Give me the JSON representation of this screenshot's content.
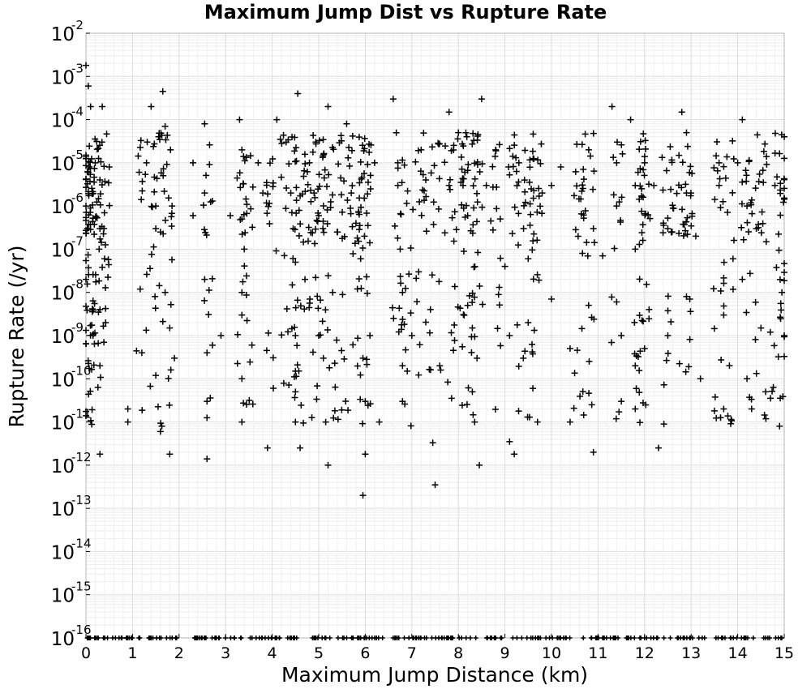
{
  "chart_data": {
    "type": "scatter",
    "title": "Maximum Jump Dist vs Rupture Rate",
    "xlabel": "Maximum Jump Distance (km)",
    "ylabel": "Rupture Rate (/yr)",
    "xlim": [
      0,
      15
    ],
    "ylim": [
      1e-16,
      0.01
    ],
    "y_scale": "log",
    "grid": true,
    "marker": "plus",
    "marker_color": "#000000",
    "xticks": [
      "0",
      "1",
      "2",
      "3",
      "4",
      "5",
      "6",
      "7",
      "8",
      "9",
      "10",
      "11",
      "12",
      "13",
      "14",
      "15"
    ],
    "yticks": [
      {
        "base": "10",
        "exp": "-2"
      },
      {
        "base": "10",
        "exp": "-3"
      },
      {
        "base": "10",
        "exp": "-4"
      },
      {
        "base": "10",
        "exp": "-5"
      },
      {
        "base": "10",
        "exp": "-6"
      },
      {
        "base": "10",
        "exp": "-7"
      },
      {
        "base": "10",
        "exp": "-8"
      },
      {
        "base": "10",
        "exp": "-9"
      },
      {
        "base": "10",
        "exp": "-10"
      },
      {
        "base": "10",
        "exp": "-11"
      },
      {
        "base": "10",
        "exp": "-12"
      },
      {
        "base": "10",
        "exp": "-13"
      },
      {
        "base": "10",
        "exp": "-14"
      },
      {
        "base": "10",
        "exp": "-15"
      },
      {
        "base": "10",
        "exp": "-16"
      }
    ],
    "points": [
      [
        0.0,
        0.0018
      ],
      [
        0.05,
        0.0006
      ],
      [
        0.1,
        0.0002
      ],
      [
        0.2,
        1e-05
      ],
      [
        0.3,
        4e-06
      ],
      [
        0.35,
        0.0002
      ],
      [
        0.3,
        3e-07
      ],
      [
        0.4,
        6e-08
      ],
      [
        0.3,
        4e-09
      ],
      [
        0.3,
        2e-10
      ],
      [
        0.3,
        1.8e-12
      ],
      [
        0.15,
        1e-09
      ],
      [
        0.5,
        8e-06
      ],
      [
        0.9,
        2e-11
      ],
      [
        0.9,
        1e-11
      ],
      [
        1.2,
        4e-10
      ],
      [
        1.3,
        1e-05
      ],
      [
        1.4,
        0.0002
      ],
      [
        1.5,
        1e-06
      ],
      [
        1.5,
        3e-07
      ],
      [
        1.5,
        1.2e-10
      ],
      [
        1.6,
        6e-12
      ],
      [
        1.65,
        0.00045
      ],
      [
        1.7,
        1e-08
      ],
      [
        1.7,
        7e-05
      ],
      [
        1.8,
        1.5e-09
      ],
      [
        1.8,
        1.8e-12
      ],
      [
        1.9,
        3e-10
      ],
      [
        2.3,
        1e-05
      ],
      [
        2.3,
        6e-07
      ],
      [
        2.55,
        8e-05
      ],
      [
        2.55,
        2e-06
      ],
      [
        2.55,
        2e-08
      ],
      [
        2.6,
        4e-10
      ],
      [
        2.6,
        3e-11
      ],
      [
        2.6,
        1.4e-12
      ],
      [
        2.9,
        1e-09
      ],
      [
        3.1,
        6e-07
      ],
      [
        3.3,
        0.0001
      ],
      [
        3.35,
        2e-05
      ],
      [
        3.35,
        5e-07
      ],
      [
        3.35,
        1e-08
      ],
      [
        3.35,
        3e-09
      ],
      [
        3.35,
        1e-10
      ],
      [
        3.35,
        1e-11
      ],
      [
        3.4,
        1e-07
      ],
      [
        3.7,
        1e-05
      ],
      [
        3.8,
        2e-06
      ],
      [
        3.9,
        2.5e-12
      ],
      [
        4.1,
        0.0001
      ],
      [
        4.3,
        3e-05
      ],
      [
        4.4,
        2e-06
      ],
      [
        4.45,
        3e-07
      ],
      [
        4.5,
        5e-08
      ],
      [
        4.5,
        1e-09
      ],
      [
        4.5,
        1.5e-10
      ],
      [
        4.5,
        5e-11
      ],
      [
        4.5,
        1e-11
      ],
      [
        4.6,
        2.5e-12
      ],
      [
        4.55,
        0.0004
      ],
      [
        4.8,
        1e-05
      ],
      [
        4.9,
        2e-06
      ],
      [
        5.0,
        6e-07
      ],
      [
        5.0,
        1e-09
      ],
      [
        5.1,
        3e-10
      ],
      [
        5.15,
        1e-11
      ],
      [
        5.2,
        1e-12
      ],
      [
        5.2,
        0.0002
      ],
      [
        5.3,
        1e-08
      ],
      [
        5.6,
        8e-05
      ],
      [
        5.7,
        2e-06
      ],
      [
        5.8,
        4e-07
      ],
      [
        5.9,
        6e-08
      ],
      [
        5.95,
        3e-10
      ],
      [
        6.0,
        3e-11
      ],
      [
        6.0,
        1.8e-12
      ],
      [
        5.95,
        2e-13
      ],
      [
        6.1,
        1e-09
      ],
      [
        6.2,
        1e-05
      ],
      [
        6.3,
        1e-11
      ],
      [
        6.6,
        0.0003
      ],
      [
        6.7,
        1e-05
      ],
      [
        6.7,
        3e-06
      ],
      [
        6.75,
        1e-07
      ],
      [
        6.8,
        1e-08
      ],
      [
        6.8,
        2e-10
      ],
      [
        6.8,
        3e-11
      ],
      [
        7.0,
        1e-09
      ],
      [
        7.2,
        2e-05
      ],
      [
        7.3,
        4e-06
      ],
      [
        7.4,
        4e-09
      ],
      [
        7.45,
        3.3e-12
      ],
      [
        7.5,
        3.5e-13
      ],
      [
        7.6,
        2e-10
      ],
      [
        7.8,
        0.00015
      ],
      [
        7.8,
        3e-06
      ],
      [
        8.0,
        5e-05
      ],
      [
        8.1,
        3e-06
      ],
      [
        8.2,
        6e-07
      ],
      [
        8.2,
        5e-09
      ],
      [
        8.3,
        1.5e-09
      ],
      [
        8.3,
        5e-11
      ],
      [
        8.35,
        1e-11
      ],
      [
        8.4,
        3e-10
      ],
      [
        8.45,
        1e-12
      ],
      [
        8.5,
        0.0003
      ],
      [
        8.6,
        3e-06
      ],
      [
        8.8,
        2e-05
      ],
      [
        8.9,
        5e-07
      ],
      [
        9.0,
        4e-08
      ],
      [
        9.1,
        1e-09
      ],
      [
        9.1,
        3.5e-12
      ],
      [
        9.2,
        1.8e-12
      ],
      [
        9.3,
        1e-05
      ],
      [
        9.4,
        3e-07
      ],
      [
        9.5,
        6e-08
      ],
      [
        9.5,
        2e-09
      ],
      [
        9.6,
        6e-11
      ],
      [
        9.7,
        1e-11
      ],
      [
        9.8,
        2e-06
      ],
      [
        10.0,
        3e-06
      ],
      [
        10.0,
        7e-09
      ],
      [
        10.2,
        8e-06
      ],
      [
        10.4,
        5e-10
      ],
      [
        10.4,
        1e-11
      ],
      [
        10.8,
        2e-05
      ],
      [
        10.9,
        3e-07
      ],
      [
        10.9,
        2e-12
      ],
      [
        11.1,
        7e-08
      ],
      [
        11.3,
        0.0002
      ],
      [
        11.4,
        1e-05
      ],
      [
        11.4,
        1e-06
      ],
      [
        11.4,
        6e-09
      ],
      [
        11.5,
        1e-09
      ],
      [
        11.5,
        3e-11
      ],
      [
        11.7,
        0.0001
      ],
      [
        11.8,
        3e-06
      ],
      [
        11.8,
        1e-07
      ],
      [
        11.8,
        2e-10
      ],
      [
        11.8,
        2e-11
      ],
      [
        12.0,
        1e-05
      ],
      [
        12.0,
        5e-10
      ],
      [
        12.2,
        3e-06
      ],
      [
        12.3,
        2.5e-12
      ],
      [
        12.5,
        3e-07
      ],
      [
        12.5,
        1e-09
      ],
      [
        12.8,
        0.00015
      ],
      [
        12.9,
        5e-05
      ],
      [
        12.9,
        2e-06
      ],
      [
        12.9,
        8e-09
      ],
      [
        13.1,
        2e-07
      ],
      [
        13.2,
        1e-10
      ],
      [
        13.6,
        1e-05
      ],
      [
        13.6,
        3e-06
      ],
      [
        13.7,
        3e-09
      ],
      [
        13.7,
        2e-11
      ],
      [
        13.9,
        6e-08
      ],
      [
        14.0,
        1e-05
      ],
      [
        14.1,
        0.0001
      ],
      [
        14.1,
        2e-08
      ],
      [
        14.2,
        1e-06
      ],
      [
        14.2,
        1e-10
      ],
      [
        14.3,
        2e-11
      ],
      [
        14.4,
        3e-07
      ],
      [
        14.5,
        1.5e-09
      ],
      [
        14.6,
        5e-11
      ],
      [
        14.7,
        1.2e-09
      ],
      [
        14.8,
        3e-06
      ],
      [
        14.9,
        8e-12
      ],
      [
        14.95,
        1e-08
      ],
      [
        15.0,
        4e-05
      ],
      [
        15.0,
        1e-09
      ]
    ],
    "floor_value": 1e-16,
    "floor_x_range": [
      0,
      15
    ]
  }
}
